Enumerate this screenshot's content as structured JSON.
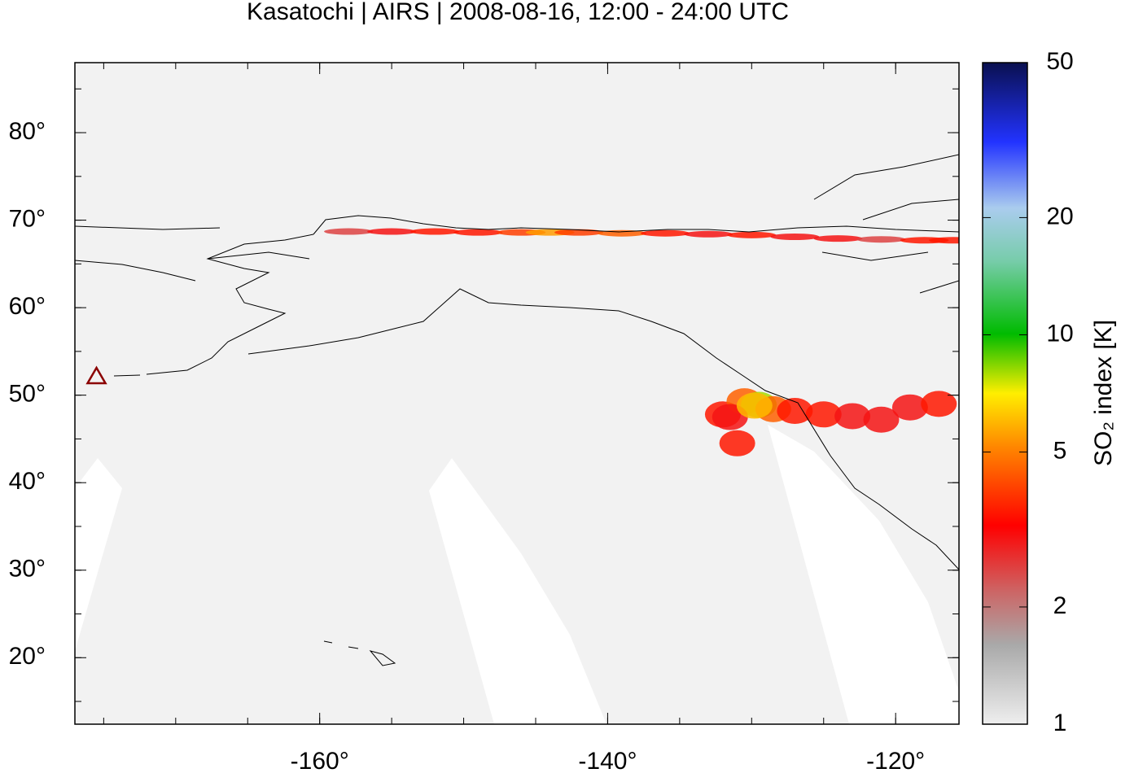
{
  "chart_data": {
    "type": "map",
    "title": "Kasatochi | AIRS | 2008-08-16, 12:00 - 24:00 UTC",
    "colorbar_label": "SO₂ index [K]",
    "xlim": [
      -177,
      -115.6
    ],
    "ylim": [
      12.4,
      88
    ],
    "xticks": [
      {
        "value": -160,
        "label": "-160°"
      },
      {
        "value": -140,
        "label": "-140°"
      },
      {
        "value": -120,
        "label": "-120°"
      }
    ],
    "yticks": [
      {
        "value": 20,
        "label": "20°"
      },
      {
        "value": 30,
        "label": "30°"
      },
      {
        "value": 40,
        "label": "40°"
      },
      {
        "value": 50,
        "label": "50°"
      },
      {
        "value": 60,
        "label": "60°"
      },
      {
        "value": 70,
        "label": "70°"
      },
      {
        "value": 80,
        "label": "80°"
      }
    ],
    "clim": [
      1,
      50
    ],
    "clog": true,
    "cticks": [
      1,
      2,
      5,
      10,
      20,
      50
    ],
    "volcano": {
      "lon": -175.5,
      "lat": 52.2,
      "color": "#8b0000"
    },
    "plumes": {
      "lon": [
        -158,
        -155,
        -152,
        -149,
        -146,
        -144,
        -142,
        -139,
        -136,
        -133,
        -130,
        -127,
        -124,
        -121,
        -118,
        -116,
        -132,
        -130.5,
        -129.5,
        -128.5,
        -131,
        -127,
        -125,
        -123,
        -121,
        -119,
        -117,
        -131.5,
        -129.8
      ],
      "lat": [
        68.7,
        68.7,
        68.7,
        68.6,
        68.6,
        68.6,
        68.6,
        68.5,
        68.5,
        68.4,
        68.3,
        68.1,
        67.9,
        67.8,
        67.7,
        67.7,
        47.8,
        49.3,
        48.9,
        48.4,
        44.5,
        48.2,
        47.8,
        47.6,
        47.2,
        48.6,
        49.0,
        47.5,
        48.8
      ],
      "values": [
        2.5,
        3,
        3.5,
        3.5,
        4,
        5.5,
        4,
        4.5,
        3.5,
        3,
        3.5,
        3,
        3,
        2.5,
        3.5,
        3.5,
        3.5,
        4.5,
        8,
        4.5,
        3.5,
        3.5,
        3.5,
        3,
        3,
        3,
        3.5,
        3,
        6
      ]
    }
  }
}
